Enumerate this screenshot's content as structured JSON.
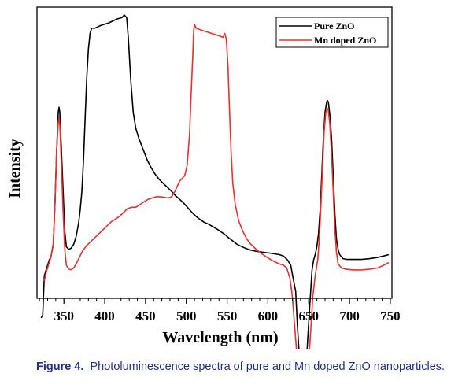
{
  "caption": {
    "label": "Figure 4.",
    "text": "Photoluminescence spectra of pure and Mn doped ZnO nanoparticles."
  },
  "colors": {
    "pure": "#000000",
    "mn": "#e8302e"
  },
  "chart_data": {
    "type": "line",
    "xlabel": "Wavelength (nm)",
    "ylabel": "Intensity",
    "xlim": [
      317,
      752
    ],
    "ylim": [
      -0.3,
      1.0
    ],
    "x_ticks": [
      350,
      400,
      450,
      500,
      550,
      600,
      650,
      700,
      750
    ],
    "y_ticks_shown": false,
    "legend_position": "top-right",
    "series": [
      {
        "name": "Pure ZnO",
        "color": "#000000",
        "points": [
          [
            322,
            -0.18
          ],
          [
            324,
            -0.17
          ],
          [
            326,
            -0.02
          ],
          [
            329,
            0.01
          ],
          [
            332,
            0.04
          ],
          [
            334,
            0.05
          ],
          [
            337,
            0.1
          ],
          [
            339,
            0.25
          ],
          [
            341,
            0.45
          ],
          [
            343,
            0.6
          ],
          [
            344,
            0.62
          ],
          [
            345,
            0.6
          ],
          [
            347,
            0.45
          ],
          [
            349,
            0.3
          ],
          [
            351,
            0.15
          ],
          [
            353,
            0.09
          ],
          [
            356,
            0.08
          ],
          [
            359,
            0.085
          ],
          [
            362,
            0.1
          ],
          [
            365,
            0.13
          ],
          [
            368,
            0.18
          ],
          [
            370,
            0.23
          ],
          [
            372,
            0.3
          ],
          [
            374,
            0.42
          ],
          [
            376,
            0.58
          ],
          [
            378,
            0.73
          ],
          [
            380,
            0.84
          ],
          [
            382,
            0.9
          ],
          [
            384,
            0.92
          ],
          [
            388,
            0.92
          ],
          [
            395,
            0.93
          ],
          [
            405,
            0.94
          ],
          [
            415,
            0.955
          ],
          [
            421,
            0.96
          ],
          [
            424,
            0.97
          ],
          [
            427,
            0.96
          ],
          [
            429,
            0.88
          ],
          [
            432,
            0.72
          ],
          [
            435,
            0.6
          ],
          [
            438,
            0.54
          ],
          [
            442,
            0.5
          ],
          [
            447,
            0.46
          ],
          [
            452,
            0.42
          ],
          [
            457,
            0.39
          ],
          [
            462,
            0.365
          ],
          [
            467,
            0.345
          ],
          [
            472,
            0.33
          ],
          [
            477,
            0.315
          ],
          [
            482,
            0.3
          ],
          [
            487,
            0.283
          ],
          [
            492,
            0.27
          ],
          [
            497,
            0.255
          ],
          [
            502,
            0.238
          ],
          [
            507,
            0.22
          ],
          [
            512,
            0.205
          ],
          [
            517,
            0.193
          ],
          [
            522,
            0.183
          ],
          [
            527,
            0.176
          ],
          [
            532,
            0.167
          ],
          [
            537,
            0.158
          ],
          [
            542,
            0.148
          ],
          [
            547,
            0.137
          ],
          [
            552,
            0.124
          ],
          [
            557,
            0.112
          ],
          [
            562,
            0.1
          ],
          [
            567,
            0.092
          ],
          [
            572,
            0.085
          ],
          [
            577,
            0.079
          ],
          [
            582,
            0.075
          ],
          [
            587,
            0.072
          ],
          [
            592,
            0.07
          ],
          [
            597,
            0.068
          ],
          [
            602,
            0.066
          ],
          [
            608,
            0.063
          ],
          [
            614,
            0.06
          ],
          [
            619,
            0.055
          ],
          [
            624,
            0.04
          ],
          [
            628,
            0.02
          ],
          [
            631,
            -0.03
          ],
          [
            634,
            -0.08
          ],
          [
            636,
            -0.2
          ],
          [
            638,
            -0.3
          ],
          [
            648,
            -0.3
          ],
          [
            650,
            -0.2
          ],
          [
            652,
            -0.1
          ],
          [
            654,
            0.0
          ],
          [
            656,
            0.04
          ],
          [
            658,
            0.06
          ],
          [
            660,
            0.09
          ],
          [
            662,
            0.14
          ],
          [
            664,
            0.23
          ],
          [
            666,
            0.36
          ],
          [
            668,
            0.5
          ],
          [
            670,
            0.6
          ],
          [
            672,
            0.64
          ],
          [
            673,
            0.645
          ],
          [
            674,
            0.64
          ],
          [
            676,
            0.59
          ],
          [
            678,
            0.5
          ],
          [
            680,
            0.36
          ],
          [
            682,
            0.22
          ],
          [
            684,
            0.12
          ],
          [
            686,
            0.08
          ],
          [
            688,
            0.06
          ],
          [
            692,
            0.045
          ],
          [
            697,
            0.042
          ],
          [
            705,
            0.042
          ],
          [
            715,
            0.042
          ],
          [
            725,
            0.045
          ],
          [
            735,
            0.05
          ],
          [
            742,
            0.055
          ],
          [
            748,
            0.06
          ]
        ]
      },
      {
        "name": "Mn doped ZnO",
        "color": "#e8302e",
        "points": [
          [
            326,
            -0.04
          ],
          [
            328,
            -0.01
          ],
          [
            331,
            0.02
          ],
          [
            334,
            0.05
          ],
          [
            337,
            0.1
          ],
          [
            339,
            0.25
          ],
          [
            341,
            0.45
          ],
          [
            343,
            0.56
          ],
          [
            344,
            0.58
          ],
          [
            345,
            0.55
          ],
          [
            347,
            0.4
          ],
          [
            349,
            0.22
          ],
          [
            351,
            0.08
          ],
          [
            353,
            0.02
          ],
          [
            356,
            0.005
          ],
          [
            359,
            0.003
          ],
          [
            362,
            0.01
          ],
          [
            365,
            0.025
          ],
          [
            369,
            0.05
          ],
          [
            373,
            0.075
          ],
          [
            378,
            0.095
          ],
          [
            383,
            0.11
          ],
          [
            388,
            0.125
          ],
          [
            393,
            0.14
          ],
          [
            398,
            0.155
          ],
          [
            403,
            0.17
          ],
          [
            408,
            0.185
          ],
          [
            413,
            0.195
          ],
          [
            418,
            0.205
          ],
          [
            423,
            0.22
          ],
          [
            428,
            0.235
          ],
          [
            433,
            0.24
          ],
          [
            438,
            0.24
          ],
          [
            443,
            0.25
          ],
          [
            448,
            0.26
          ],
          [
            453,
            0.27
          ],
          [
            458,
            0.275
          ],
          [
            463,
            0.28
          ],
          [
            468,
            0.28
          ],
          [
            473,
            0.278
          ],
          [
            478,
            0.275
          ],
          [
            482,
            0.28
          ],
          [
            486,
            0.3
          ],
          [
            489,
            0.32
          ],
          [
            492,
            0.34
          ],
          [
            495,
            0.35
          ],
          [
            498,
            0.36
          ],
          [
            501,
            0.4
          ],
          [
            504,
            0.52
          ],
          [
            506,
            0.68
          ],
          [
            508,
            0.82
          ],
          [
            509,
            0.91
          ],
          [
            510,
            0.935
          ],
          [
            512,
            0.92
          ],
          [
            516,
            0.915
          ],
          [
            521,
            0.91
          ],
          [
            526,
            0.905
          ],
          [
            531,
            0.9
          ],
          [
            536,
            0.895
          ],
          [
            541,
            0.89
          ],
          [
            545,
            0.885
          ],
          [
            547,
            0.9
          ],
          [
            549,
            0.88
          ],
          [
            551,
            0.78
          ],
          [
            553,
            0.6
          ],
          [
            555,
            0.44
          ],
          [
            557,
            0.33
          ],
          [
            560,
            0.25
          ],
          [
            564,
            0.19
          ],
          [
            569,
            0.15
          ],
          [
            574,
            0.12
          ],
          [
            579,
            0.1
          ],
          [
            584,
            0.085
          ],
          [
            589,
            0.072
          ],
          [
            594,
            0.06
          ],
          [
            599,
            0.05
          ],
          [
            604,
            0.04
          ],
          [
            609,
            0.032
          ],
          [
            614,
            0.025
          ],
          [
            619,
            0.02
          ],
          [
            623,
            0.01
          ],
          [
            627,
            -0.03
          ],
          [
            630,
            -0.1
          ],
          [
            633,
            -0.22
          ],
          [
            635,
            -0.3
          ],
          [
            651,
            -0.3
          ],
          [
            653,
            -0.2
          ],
          [
            655,
            -0.1
          ],
          [
            658,
            -0.02
          ],
          [
            661,
            0.04
          ],
          [
            663,
            0.12
          ],
          [
            665,
            0.25
          ],
          [
            667,
            0.4
          ],
          [
            669,
            0.53
          ],
          [
            671,
            0.6
          ],
          [
            673,
            0.615
          ],
          [
            674,
            0.61
          ],
          [
            676,
            0.55
          ],
          [
            678,
            0.44
          ],
          [
            680,
            0.3
          ],
          [
            682,
            0.16
          ],
          [
            684,
            0.07
          ],
          [
            686,
            0.025
          ],
          [
            690,
            0.01
          ],
          [
            695,
            0.005
          ],
          [
            705,
            0.002
          ],
          [
            715,
            0.002
          ],
          [
            725,
            0.005
          ],
          [
            735,
            0.01
          ],
          [
            742,
            0.02
          ],
          [
            748,
            0.03
          ]
        ]
      }
    ]
  }
}
